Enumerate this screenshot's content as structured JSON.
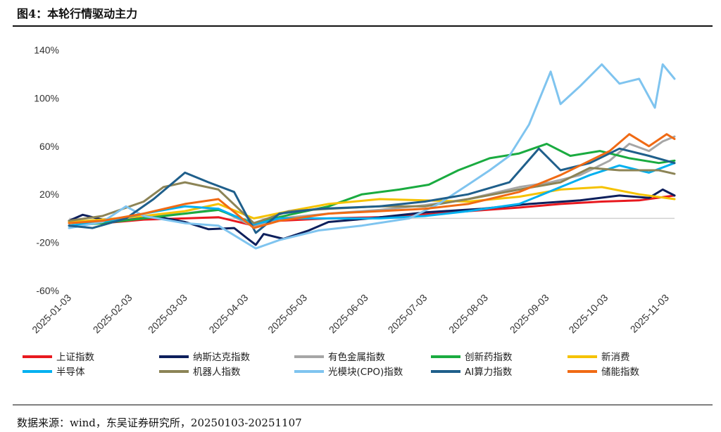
{
  "header": {
    "title": "图4：本轮行情驱动主力"
  },
  "footer": {
    "source": "数据来源：wind，东吴证券研究所，20250103-20251107"
  },
  "chart_data": {
    "type": "line",
    "title": "",
    "xlabel": "",
    "ylabel": "",
    "y_unit": "%",
    "ylim": [
      -60,
      140
    ],
    "yticks": [
      -60,
      -20,
      20,
      60,
      100,
      140
    ],
    "xticks": [
      "2025-01-03",
      "2025-02-03",
      "2025-03-03",
      "2025-04-03",
      "2025-05-03",
      "2025-06-03",
      "2025-07-03",
      "2025-08-03",
      "2025-09-03",
      "2025-10-03",
      "2025-11-03"
    ],
    "xlim": [
      "2025-01-03",
      "2025-11-07"
    ],
    "grid": false,
    "baseline": 0,
    "legend_position": "bottom",
    "series": [
      {
        "name": "上证指数",
        "color": "#e8191f",
        "points": [
          [
            "2025-01-03",
            -3
          ],
          [
            "2025-01-20",
            -4
          ],
          [
            "2025-02-10",
            -1
          ],
          [
            "2025-03-03",
            0
          ],
          [
            "2025-03-20",
            1
          ],
          [
            "2025-04-07",
            -6
          ],
          [
            "2025-04-20",
            -2
          ],
          [
            "2025-05-15",
            0
          ],
          [
            "2025-06-10",
            1
          ],
          [
            "2025-07-01",
            3
          ],
          [
            "2025-07-25",
            6
          ],
          [
            "2025-08-20",
            9
          ],
          [
            "2025-09-10",
            12
          ],
          [
            "2025-10-01",
            14
          ],
          [
            "2025-10-20",
            15
          ],
          [
            "2025-11-07",
            19
          ]
        ]
      },
      {
        "name": "纳斯达克指数",
        "color": "#0d1f5c",
        "points": [
          [
            "2025-01-03",
            -2
          ],
          [
            "2025-01-10",
            3
          ],
          [
            "2025-01-25",
            -3
          ],
          [
            "2025-02-15",
            2
          ],
          [
            "2025-03-03",
            -3
          ],
          [
            "2025-03-15",
            -9
          ],
          [
            "2025-03-28",
            -8
          ],
          [
            "2025-04-04",
            -17
          ],
          [
            "2025-04-08",
            -22
          ],
          [
            "2025-04-12",
            -13
          ],
          [
            "2025-04-22",
            -17
          ],
          [
            "2025-05-05",
            -10
          ],
          [
            "2025-05-15",
            -3
          ],
          [
            "2025-06-05",
            0
          ],
          [
            "2025-07-03",
            5
          ],
          [
            "2025-08-01",
            8
          ],
          [
            "2025-08-25",
            12
          ],
          [
            "2025-09-20",
            15
          ],
          [
            "2025-10-10",
            19
          ],
          [
            "2025-10-25",
            17
          ],
          [
            "2025-11-01",
            24
          ],
          [
            "2025-11-07",
            19
          ]
        ]
      },
      {
        "name": "有色金属指数",
        "color": "#a6a6a6",
        "points": [
          [
            "2025-01-03",
            -4
          ],
          [
            "2025-01-20",
            -2
          ],
          [
            "2025-02-10",
            2
          ],
          [
            "2025-03-03",
            4
          ],
          [
            "2025-03-20",
            8
          ],
          [
            "2025-04-07",
            -7
          ],
          [
            "2025-04-20",
            0
          ],
          [
            "2025-05-15",
            4
          ],
          [
            "2025-06-10",
            7
          ],
          [
            "2025-07-03",
            11
          ],
          [
            "2025-07-25",
            16
          ],
          [
            "2025-08-20",
            26
          ],
          [
            "2025-09-05",
            30
          ],
          [
            "2025-09-20",
            36
          ],
          [
            "2025-10-05",
            48
          ],
          [
            "2025-10-15",
            62
          ],
          [
            "2025-10-25",
            56
          ],
          [
            "2025-11-01",
            64
          ],
          [
            "2025-11-07",
            68
          ]
        ]
      },
      {
        "name": "创新药指数",
        "color": "#1aab40",
        "points": [
          [
            "2025-01-03",
            -6
          ],
          [
            "2025-01-20",
            -4
          ],
          [
            "2025-02-10",
            0
          ],
          [
            "2025-03-03",
            4
          ],
          [
            "2025-03-20",
            7
          ],
          [
            "2025-04-07",
            -4
          ],
          [
            "2025-04-25",
            3
          ],
          [
            "2025-05-15",
            10
          ],
          [
            "2025-06-01",
            20
          ],
          [
            "2025-06-20",
            24
          ],
          [
            "2025-07-05",
            28
          ],
          [
            "2025-07-20",
            40
          ],
          [
            "2025-08-05",
            50
          ],
          [
            "2025-08-20",
            54
          ],
          [
            "2025-09-03",
            62
          ],
          [
            "2025-09-15",
            52
          ],
          [
            "2025-09-30",
            56
          ],
          [
            "2025-10-15",
            50
          ],
          [
            "2025-10-30",
            46
          ],
          [
            "2025-11-07",
            48
          ]
        ]
      },
      {
        "name": "新消费",
        "color": "#f5c200",
        "points": [
          [
            "2025-01-03",
            -3
          ],
          [
            "2025-01-20",
            -1
          ],
          [
            "2025-02-10",
            2
          ],
          [
            "2025-03-03",
            6
          ],
          [
            "2025-03-20",
            12
          ],
          [
            "2025-04-07",
            0
          ],
          [
            "2025-04-25",
            6
          ],
          [
            "2025-05-15",
            12
          ],
          [
            "2025-06-10",
            16
          ],
          [
            "2025-07-03",
            15
          ],
          [
            "2025-07-25",
            14
          ],
          [
            "2025-08-20",
            18
          ],
          [
            "2025-09-10",
            24
          ],
          [
            "2025-10-01",
            26
          ],
          [
            "2025-10-20",
            20
          ],
          [
            "2025-11-07",
            16
          ]
        ]
      },
      {
        "name": "半导体",
        "color": "#00b0f0",
        "points": [
          [
            "2025-01-03",
            -6
          ],
          [
            "2025-01-20",
            -3
          ],
          [
            "2025-02-10",
            4
          ],
          [
            "2025-03-03",
            10
          ],
          [
            "2025-03-20",
            8
          ],
          [
            "2025-04-07",
            -5
          ],
          [
            "2025-04-20",
            0
          ],
          [
            "2025-05-15",
            0
          ],
          [
            "2025-06-10",
            0
          ],
          [
            "2025-07-03",
            2
          ],
          [
            "2025-07-25",
            6
          ],
          [
            "2025-08-20",
            12
          ],
          [
            "2025-09-10",
            26
          ],
          [
            "2025-09-25",
            36
          ],
          [
            "2025-10-10",
            44
          ],
          [
            "2025-10-25",
            38
          ],
          [
            "2025-11-07",
            46
          ]
        ]
      },
      {
        "name": "机器人指数",
        "color": "#8c8456",
        "points": [
          [
            "2025-01-03",
            -2
          ],
          [
            "2025-01-20",
            2
          ],
          [
            "2025-02-10",
            14
          ],
          [
            "2025-02-20",
            26
          ],
          [
            "2025-03-03",
            30
          ],
          [
            "2025-03-20",
            24
          ],
          [
            "2025-04-07",
            -4
          ],
          [
            "2025-04-25",
            6
          ],
          [
            "2025-05-15",
            8
          ],
          [
            "2025-06-10",
            10
          ],
          [
            "2025-07-03",
            10
          ],
          [
            "2025-07-25",
            16
          ],
          [
            "2025-08-20",
            24
          ],
          [
            "2025-09-10",
            30
          ],
          [
            "2025-09-25",
            42
          ],
          [
            "2025-10-10",
            40
          ],
          [
            "2025-10-30",
            40
          ],
          [
            "2025-11-07",
            37
          ]
        ]
      },
      {
        "name": "光模块(CPO)指数",
        "color": "#7fc4ef",
        "points": [
          [
            "2025-01-03",
            -8
          ],
          [
            "2025-01-20",
            -3
          ],
          [
            "2025-02-01",
            10
          ],
          [
            "2025-02-10",
            2
          ],
          [
            "2025-03-03",
            -4
          ],
          [
            "2025-03-20",
            -6
          ],
          [
            "2025-04-08",
            -25
          ],
          [
            "2025-04-20",
            -18
          ],
          [
            "2025-05-10",
            -10
          ],
          [
            "2025-06-01",
            -6
          ],
          [
            "2025-06-25",
            0
          ],
          [
            "2025-07-10",
            12
          ],
          [
            "2025-07-25",
            28
          ],
          [
            "2025-08-05",
            40
          ],
          [
            "2025-08-15",
            52
          ],
          [
            "2025-08-25",
            78
          ],
          [
            "2025-09-05",
            122
          ],
          [
            "2025-09-10",
            95
          ],
          [
            "2025-09-20",
            110
          ],
          [
            "2025-10-01",
            128
          ],
          [
            "2025-10-10",
            112
          ],
          [
            "2025-10-20",
            116
          ],
          [
            "2025-10-28",
            92
          ],
          [
            "2025-11-01",
            128
          ],
          [
            "2025-11-07",
            116
          ]
        ]
      },
      {
        "name": "AI算力指数",
        "color": "#1f5f8b",
        "points": [
          [
            "2025-01-03",
            -6
          ],
          [
            "2025-01-15",
            -8
          ],
          [
            "2025-02-01",
            0
          ],
          [
            "2025-02-15",
            16
          ],
          [
            "2025-03-03",
            38
          ],
          [
            "2025-03-15",
            30
          ],
          [
            "2025-03-28",
            22
          ],
          [
            "2025-04-08",
            -12
          ],
          [
            "2025-04-20",
            4
          ],
          [
            "2025-05-10",
            8
          ],
          [
            "2025-06-10",
            10
          ],
          [
            "2025-07-03",
            14
          ],
          [
            "2025-07-25",
            20
          ],
          [
            "2025-08-15",
            30
          ],
          [
            "2025-08-30",
            58
          ],
          [
            "2025-09-10",
            40
          ],
          [
            "2025-09-25",
            46
          ],
          [
            "2025-10-10",
            58
          ],
          [
            "2025-10-25",
            52
          ],
          [
            "2025-11-07",
            46
          ]
        ]
      },
      {
        "name": "储能指数",
        "color": "#f06a14",
        "points": [
          [
            "2025-01-03",
            -4
          ],
          [
            "2025-01-20",
            -2
          ],
          [
            "2025-02-10",
            4
          ],
          [
            "2025-03-03",
            12
          ],
          [
            "2025-03-20",
            16
          ],
          [
            "2025-04-07",
            -8
          ],
          [
            "2025-04-20",
            -2
          ],
          [
            "2025-05-15",
            4
          ],
          [
            "2025-06-10",
            6
          ],
          [
            "2025-07-03",
            8
          ],
          [
            "2025-07-25",
            12
          ],
          [
            "2025-08-20",
            22
          ],
          [
            "2025-09-10",
            36
          ],
          [
            "2025-09-25",
            48
          ],
          [
            "2025-10-05",
            56
          ],
          [
            "2025-10-15",
            70
          ],
          [
            "2025-10-25",
            60
          ],
          [
            "2025-11-03",
            70
          ],
          [
            "2025-11-07",
            66
          ]
        ]
      }
    ]
  }
}
